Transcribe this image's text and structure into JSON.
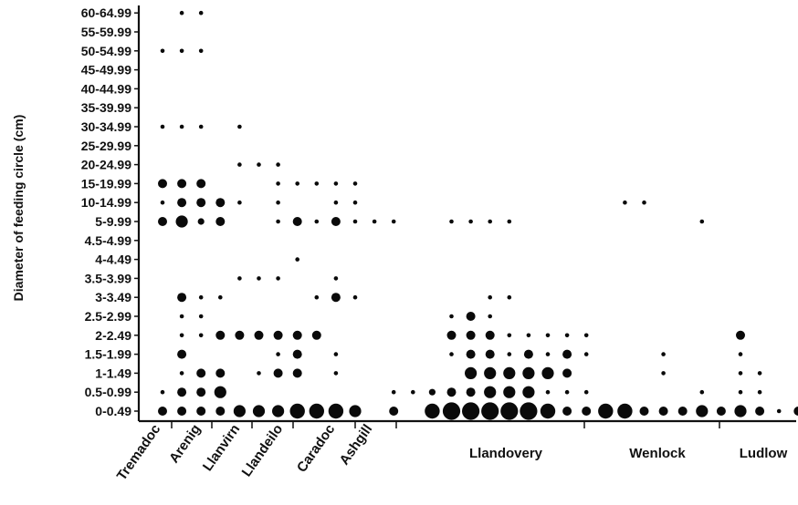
{
  "chart_data": {
    "type": "scatter",
    "title": "",
    "ylabel": "Diameter of feeding circle (cm)",
    "xlabel": "",
    "y_categories": [
      "0-0.49",
      "0.5-0.99",
      "1-1.49",
      "1.5-1.99",
      "2-2.49",
      "2.5-2.99",
      "3-3.49",
      "3.5-3.99",
      "4-4.49",
      "4.5-4.99",
      "5-9.99",
      "10-14.99",
      "15-19.99",
      "20-24.99",
      "25-29.99",
      "30-34.99",
      "35-39.99",
      "40-44.99",
      "45-49.99",
      "50-54.99",
      "55-59.99",
      "60-64.99"
    ],
    "periods": [
      {
        "label": "Tremadoc",
        "columns": [
          1
        ]
      },
      {
        "label": "Arenig",
        "columns": [
          2,
          3,
          4
        ]
      },
      {
        "label": "Llanvirn",
        "columns": [
          5,
          6,
          7
        ]
      },
      {
        "label": "Llandeilo",
        "columns": [
          8,
          9
        ]
      },
      {
        "label": "Caradoc",
        "columns": [
          10,
          11,
          12
        ]
      },
      {
        "label": "Ashgill",
        "columns": [
          13,
          14,
          15
        ]
      },
      {
        "label": "Llandovery",
        "columns": [
          16,
          17,
          18,
          19,
          20,
          21,
          22,
          23,
          24,
          25,
          26,
          27,
          28,
          29,
          30
        ]
      },
      {
        "label": "Wenlock",
        "columns": [
          31,
          32,
          33,
          34,
          35,
          36,
          37
        ]
      },
      {
        "label": "Ludlow",
        "columns": [
          38,
          39,
          40,
          41
        ]
      }
    ],
    "size_scale": "circle size indicates relative frequency (1 = smallest, 6 = largest)",
    "points": [
      {
        "col": 1,
        "cat": "0-0.49",
        "size": 3
      },
      {
        "col": 1,
        "cat": "0.5-0.99",
        "size": 1
      },
      {
        "col": 1,
        "cat": "5-9.99",
        "size": 3
      },
      {
        "col": 1,
        "cat": "10-14.99",
        "size": 1
      },
      {
        "col": 1,
        "cat": "15-19.99",
        "size": 3
      },
      {
        "col": 1,
        "cat": "30-34.99",
        "size": 1
      },
      {
        "col": 1,
        "cat": "50-54.99",
        "size": 1
      },
      {
        "col": 2,
        "cat": "0-0.49",
        "size": 3
      },
      {
        "col": 2,
        "cat": "0.5-0.99",
        "size": 3
      },
      {
        "col": 2,
        "cat": "1-1.49",
        "size": 1
      },
      {
        "col": 2,
        "cat": "1.5-1.99",
        "size": 3
      },
      {
        "col": 2,
        "cat": "2-2.49",
        "size": 1
      },
      {
        "col": 2,
        "cat": "2.5-2.99",
        "size": 1
      },
      {
        "col": 2,
        "cat": "3-3.49",
        "size": 3
      },
      {
        "col": 2,
        "cat": "5-9.99",
        "size": 4
      },
      {
        "col": 2,
        "cat": "10-14.99",
        "size": 3
      },
      {
        "col": 2,
        "cat": "15-19.99",
        "size": 3
      },
      {
        "col": 2,
        "cat": "30-34.99",
        "size": 1
      },
      {
        "col": 2,
        "cat": "50-54.99",
        "size": 1
      },
      {
        "col": 2,
        "cat": "60-64.99",
        "size": 1
      },
      {
        "col": 3,
        "cat": "0-0.49",
        "size": 3
      },
      {
        "col": 3,
        "cat": "0.5-0.99",
        "size": 3
      },
      {
        "col": 3,
        "cat": "1-1.49",
        "size": 3
      },
      {
        "col": 3,
        "cat": "2-2.49",
        "size": 1
      },
      {
        "col": 3,
        "cat": "2.5-2.99",
        "size": 1
      },
      {
        "col": 3,
        "cat": "3-3.49",
        "size": 1
      },
      {
        "col": 3,
        "cat": "5-9.99",
        "size": 2
      },
      {
        "col": 3,
        "cat": "10-14.99",
        "size": 3
      },
      {
        "col": 3,
        "cat": "15-19.99",
        "size": 3
      },
      {
        "col": 3,
        "cat": "30-34.99",
        "size": 1
      },
      {
        "col": 3,
        "cat": "50-54.99",
        "size": 1
      },
      {
        "col": 3,
        "cat": "60-64.99",
        "size": 1
      },
      {
        "col": 4,
        "cat": "0-0.49",
        "size": 3
      },
      {
        "col": 4,
        "cat": "0.5-0.99",
        "size": 4
      },
      {
        "col": 4,
        "cat": "1-1.49",
        "size": 3
      },
      {
        "col": 4,
        "cat": "2-2.49",
        "size": 3
      },
      {
        "col": 4,
        "cat": "3-3.49",
        "size": 1
      },
      {
        "col": 4,
        "cat": "5-9.99",
        "size": 3
      },
      {
        "col": 4,
        "cat": "10-14.99",
        "size": 3
      },
      {
        "col": 5,
        "cat": "0-0.49",
        "size": 4
      },
      {
        "col": 5,
        "cat": "2-2.49",
        "size": 3
      },
      {
        "col": 5,
        "cat": "3.5-3.99",
        "size": 1
      },
      {
        "col": 5,
        "cat": "10-14.99",
        "size": 1
      },
      {
        "col": 5,
        "cat": "20-24.99",
        "size": 1
      },
      {
        "col": 5,
        "cat": "30-34.99",
        "size": 1
      },
      {
        "col": 6,
        "cat": "0-0.49",
        "size": 4
      },
      {
        "col": 6,
        "cat": "1-1.49",
        "size": 1
      },
      {
        "col": 6,
        "cat": "2-2.49",
        "size": 3
      },
      {
        "col": 6,
        "cat": "3.5-3.99",
        "size": 1
      },
      {
        "col": 6,
        "cat": "20-24.99",
        "size": 1
      },
      {
        "col": 7,
        "cat": "0-0.49",
        "size": 4
      },
      {
        "col": 7,
        "cat": "1-1.49",
        "size": 3
      },
      {
        "col": 7,
        "cat": "1.5-1.99",
        "size": 1
      },
      {
        "col": 7,
        "cat": "2-2.49",
        "size": 3
      },
      {
        "col": 7,
        "cat": "3.5-3.99",
        "size": 1
      },
      {
        "col": 7,
        "cat": "5-9.99",
        "size": 1
      },
      {
        "col": 7,
        "cat": "10-14.99",
        "size": 1
      },
      {
        "col": 7,
        "cat": "15-19.99",
        "size": 1
      },
      {
        "col": 7,
        "cat": "20-24.99",
        "size": 1
      },
      {
        "col": 8,
        "cat": "0-0.49",
        "size": 5
      },
      {
        "col": 8,
        "cat": "1-1.49",
        "size": 3
      },
      {
        "col": 8,
        "cat": "1.5-1.99",
        "size": 3
      },
      {
        "col": 8,
        "cat": "2-2.49",
        "size": 3
      },
      {
        "col": 8,
        "cat": "4-4.49",
        "size": 1
      },
      {
        "col": 8,
        "cat": "5-9.99",
        "size": 3
      },
      {
        "col": 8,
        "cat": "15-19.99",
        "size": 1
      },
      {
        "col": 9,
        "cat": "0-0.49",
        "size": 5
      },
      {
        "col": 9,
        "cat": "2-2.49",
        "size": 3
      },
      {
        "col": 9,
        "cat": "3-3.49",
        "size": 1
      },
      {
        "col": 9,
        "cat": "5-9.99",
        "size": 1
      },
      {
        "col": 9,
        "cat": "15-19.99",
        "size": 1
      },
      {
        "col": 10,
        "cat": "0-0.49",
        "size": 5
      },
      {
        "col": 10,
        "cat": "1-1.49",
        "size": 1
      },
      {
        "col": 10,
        "cat": "1.5-1.99",
        "size": 1
      },
      {
        "col": 10,
        "cat": "3-3.49",
        "size": 3
      },
      {
        "col": 10,
        "cat": "3.5-3.99",
        "size": 1
      },
      {
        "col": 10,
        "cat": "5-9.99",
        "size": 3
      },
      {
        "col": 10,
        "cat": "10-14.99",
        "size": 1
      },
      {
        "col": 10,
        "cat": "15-19.99",
        "size": 1
      },
      {
        "col": 11,
        "cat": "0-0.49",
        "size": 4
      },
      {
        "col": 11,
        "cat": "3-3.49",
        "size": 1
      },
      {
        "col": 11,
        "cat": "5-9.99",
        "size": 1
      },
      {
        "col": 11,
        "cat": "10-14.99",
        "size": 1
      },
      {
        "col": 11,
        "cat": "15-19.99",
        "size": 1
      },
      {
        "col": 12,
        "cat": "5-9.99",
        "size": 1
      },
      {
        "col": 13,
        "cat": "0-0.49",
        "size": 3
      },
      {
        "col": 13,
        "cat": "0.5-0.99",
        "size": 1
      },
      {
        "col": 13,
        "cat": "5-9.99",
        "size": 1
      },
      {
        "col": 14,
        "cat": "0.5-0.99",
        "size": 1
      },
      {
        "col": 15,
        "cat": "0-0.49",
        "size": 5
      },
      {
        "col": 15,
        "cat": "0.5-0.99",
        "size": 2
      },
      {
        "col": 16,
        "cat": "0-0.49",
        "size": 6
      },
      {
        "col": 16,
        "cat": "0.5-0.99",
        "size": 3
      },
      {
        "col": 16,
        "cat": "1.5-1.99",
        "size": 1
      },
      {
        "col": 16,
        "cat": "2-2.49",
        "size": 3
      },
      {
        "col": 16,
        "cat": "2.5-2.99",
        "size": 1
      },
      {
        "col": 16,
        "cat": "5-9.99",
        "size": 1
      },
      {
        "col": 17,
        "cat": "0-0.49",
        "size": 6
      },
      {
        "col": 17,
        "cat": "0.5-0.99",
        "size": 3
      },
      {
        "col": 17,
        "cat": "1-1.49",
        "size": 4
      },
      {
        "col": 17,
        "cat": "1.5-1.99",
        "size": 3
      },
      {
        "col": 17,
        "cat": "2-2.49",
        "size": 3
      },
      {
        "col": 17,
        "cat": "2.5-2.99",
        "size": 3
      },
      {
        "col": 17,
        "cat": "5-9.99",
        "size": 1
      },
      {
        "col": 18,
        "cat": "0-0.49",
        "size": 6
      },
      {
        "col": 18,
        "cat": "0.5-0.99",
        "size": 4
      },
      {
        "col": 18,
        "cat": "1-1.49",
        "size": 4
      },
      {
        "col": 18,
        "cat": "1.5-1.99",
        "size": 3
      },
      {
        "col": 18,
        "cat": "2-2.49",
        "size": 3
      },
      {
        "col": 18,
        "cat": "2.5-2.99",
        "size": 1
      },
      {
        "col": 18,
        "cat": "3-3.49",
        "size": 1
      },
      {
        "col": 18,
        "cat": "5-9.99",
        "size": 1
      },
      {
        "col": 19,
        "cat": "0-0.49",
        "size": 6
      },
      {
        "col": 19,
        "cat": "0.5-0.99",
        "size": 4
      },
      {
        "col": 19,
        "cat": "1-1.49",
        "size": 4
      },
      {
        "col": 19,
        "cat": "1.5-1.99",
        "size": 1
      },
      {
        "col": 19,
        "cat": "2-2.49",
        "size": 1
      },
      {
        "col": 19,
        "cat": "3-3.49",
        "size": 1
      },
      {
        "col": 19,
        "cat": "5-9.99",
        "size": 1
      },
      {
        "col": 20,
        "cat": "0-0.49",
        "size": 6
      },
      {
        "col": 20,
        "cat": "0.5-0.99",
        "size": 4
      },
      {
        "col": 20,
        "cat": "1-1.49",
        "size": 4
      },
      {
        "col": 20,
        "cat": "1.5-1.99",
        "size": 3
      },
      {
        "col": 20,
        "cat": "2-2.49",
        "size": 1
      },
      {
        "col": 21,
        "cat": "0-0.49",
        "size": 5
      },
      {
        "col": 21,
        "cat": "0.5-0.99",
        "size": 1
      },
      {
        "col": 21,
        "cat": "1-1.49",
        "size": 4
      },
      {
        "col": 21,
        "cat": "1.5-1.99",
        "size": 1
      },
      {
        "col": 21,
        "cat": "2-2.49",
        "size": 1
      },
      {
        "col": 22,
        "cat": "0-0.49",
        "size": 3
      },
      {
        "col": 22,
        "cat": "0.5-0.99",
        "size": 1
      },
      {
        "col": 22,
        "cat": "1-1.49",
        "size": 3
      },
      {
        "col": 22,
        "cat": "1.5-1.99",
        "size": 3
      },
      {
        "col": 22,
        "cat": "2-2.49",
        "size": 1
      },
      {
        "col": 23,
        "cat": "0-0.49",
        "size": 3
      },
      {
        "col": 23,
        "cat": "0.5-0.99",
        "size": 1
      },
      {
        "col": 23,
        "cat": "1.5-1.99",
        "size": 1
      },
      {
        "col": 23,
        "cat": "2-2.49",
        "size": 1
      },
      {
        "col": 24,
        "cat": "0-0.49",
        "size": 5
      },
      {
        "col": 25,
        "cat": "0-0.49",
        "size": 5
      },
      {
        "col": 25,
        "cat": "10-14.99",
        "size": 1
      },
      {
        "col": 26,
        "cat": "0-0.49",
        "size": 3
      },
      {
        "col": 26,
        "cat": "10-14.99",
        "size": 1
      },
      {
        "col": 27,
        "cat": "0-0.49",
        "size": 3
      },
      {
        "col": 27,
        "cat": "1-1.49",
        "size": 1
      },
      {
        "col": 27,
        "cat": "1.5-1.99",
        "size": 1
      },
      {
        "col": 28,
        "cat": "0-0.49",
        "size": 3
      },
      {
        "col": 29,
        "cat": "0-0.49",
        "size": 4
      },
      {
        "col": 29,
        "cat": "0.5-0.99",
        "size": 1
      },
      {
        "col": 29,
        "cat": "5-9.99",
        "size": 1
      },
      {
        "col": 30,
        "cat": "0-0.49",
        "size": 3
      },
      {
        "col": 31,
        "cat": "0-0.49",
        "size": 4
      },
      {
        "col": 31,
        "cat": "0.5-0.99",
        "size": 1
      },
      {
        "col": 31,
        "cat": "1-1.49",
        "size": 1
      },
      {
        "col": 31,
        "cat": "1.5-1.99",
        "size": 1
      },
      {
        "col": 31,
        "cat": "2-2.49",
        "size": 3
      },
      {
        "col": 32,
        "cat": "0-0.49",
        "size": 3
      },
      {
        "col": 32,
        "cat": "0.5-0.99",
        "size": 1
      },
      {
        "col": 32,
        "cat": "1-1.49",
        "size": 1
      },
      {
        "col": 33,
        "cat": "0-0.49",
        "size": 1
      },
      {
        "col": 34,
        "cat": "0-0.49",
        "size": 3
      }
    ]
  },
  "y_tick_labels": [
    "0-0.49",
    "0.5-0.99",
    "1-1.49",
    "1.5-1.99",
    "2-2.49",
    "2.5-2.99",
    "3-3.49",
    "3.5-3.99",
    "4-4.49",
    "4.5-4.99",
    "5-9.99",
    "10-14.99",
    "15-19.99",
    "20-24.99",
    "25-29.99",
    "30-34.99",
    "35-39.99",
    "40-44.99",
    "45-49.99",
    "50-54.99",
    "55-59.99",
    "60-64.99"
  ],
  "x_period_labels": {
    "tremadoc": "Tremadoc",
    "arenig": "Arenig",
    "llanvirn": "Llanvirn",
    "llandeilo": "Llandeilo",
    "caradoc": "Caradoc",
    "ashgill": "Ashgill",
    "llandovery": "Llandovery",
    "wenlock": "Wenlock",
    "ludlow": "Ludlow"
  }
}
